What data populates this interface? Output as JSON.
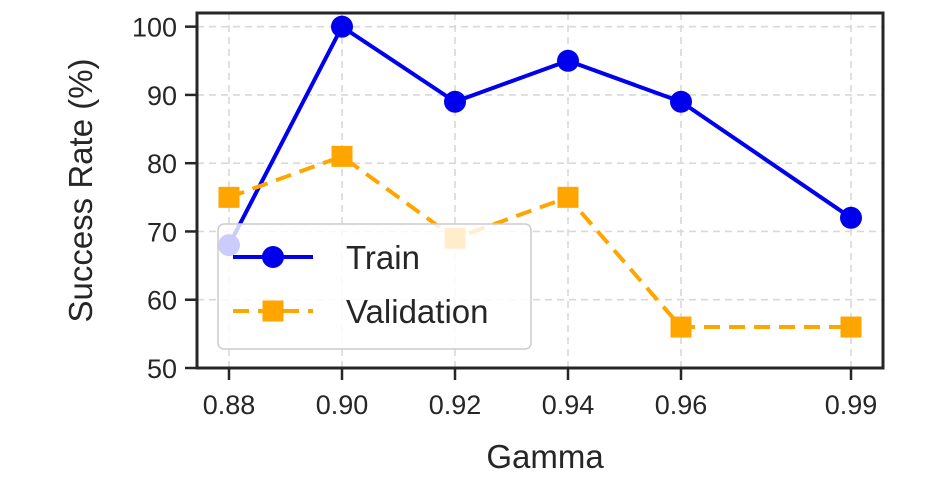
{
  "chart_data": {
    "type": "line",
    "title": "",
    "xlabel": "Gamma",
    "ylabel": "Success Rate (%)",
    "x": [
      0.88,
      0.9,
      0.92,
      0.94,
      0.96,
      0.99
    ],
    "x_tick_labels": [
      "0.88",
      "0.90",
      "0.92",
      "0.94",
      "0.96",
      "0.99"
    ],
    "ylim": [
      50,
      102
    ],
    "y_ticks": [
      50,
      60,
      70,
      80,
      90,
      100
    ],
    "grid": true,
    "grid_style": "dashed",
    "legend_position": "lower-left",
    "series": [
      {
        "name": "Train",
        "values": [
          68,
          100,
          89,
          95,
          89,
          72
        ],
        "color": "#0000ee",
        "line_style": "solid",
        "marker": "circle"
      },
      {
        "name": "Validation",
        "values": [
          75,
          81,
          69,
          75,
          56,
          56
        ],
        "color": "#ffa500",
        "line_style": "dashed",
        "marker": "square"
      }
    ]
  }
}
